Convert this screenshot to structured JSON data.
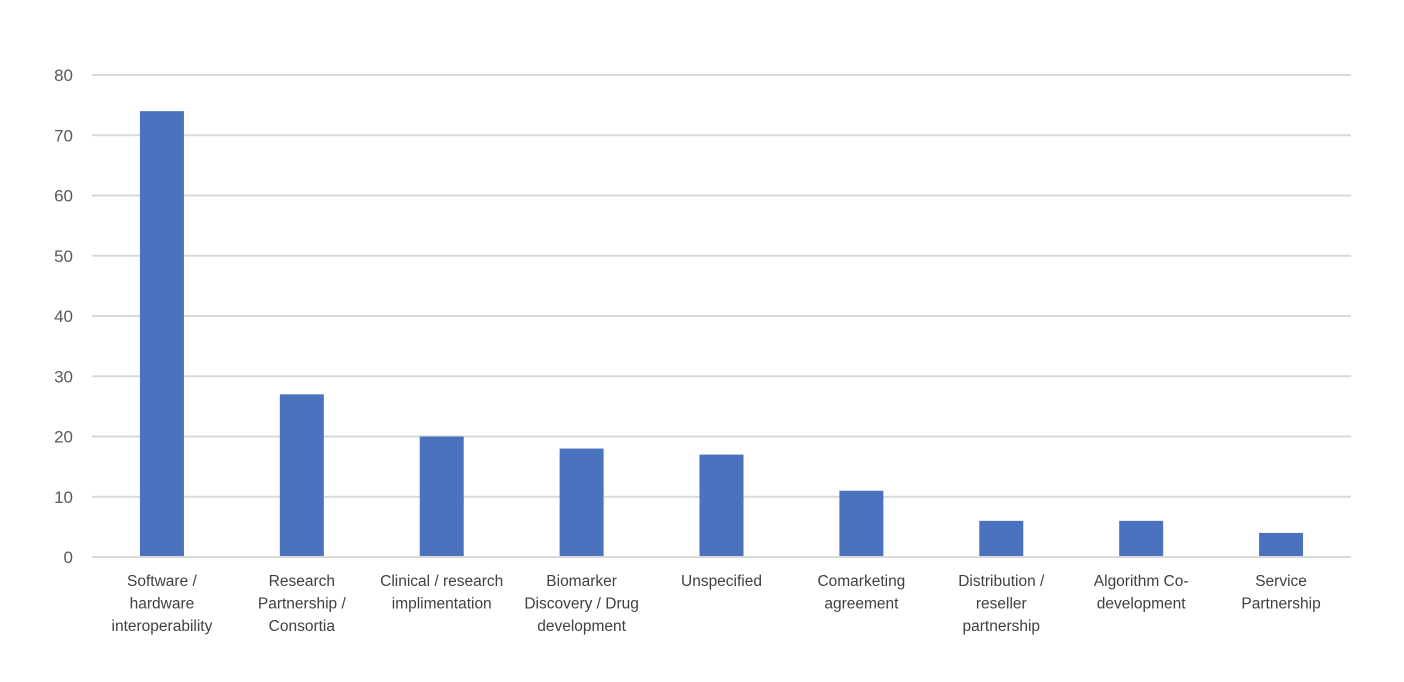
{
  "chart_data": {
    "type": "bar",
    "title": "",
    "xlabel": "",
    "ylabel": "",
    "categories": [
      "Software / hardware interoperability",
      "Research Partnership / Consortia",
      "Clinical / research implimentation",
      "Biomarker Discovery / Drug development",
      "Unspecified",
      "Comarketing agreement",
      "Distribution / reseller partnership",
      "Algorithm Co-development",
      "Service Partnership"
    ],
    "category_label_lines": [
      [
        "Software /",
        "hardware",
        "interoperability"
      ],
      [
        "Research",
        "Partnership /",
        "Consortia"
      ],
      [
        "Clinical / research",
        "implimentation"
      ],
      [
        "Biomarker",
        "Discovery / Drug",
        "development"
      ],
      [
        "Unspecified"
      ],
      [
        "Comarketing",
        "agreement"
      ],
      [
        "Distribution /",
        "reseller",
        "partnership"
      ],
      [
        "Algorithm Co-",
        "development"
      ],
      [
        "Service",
        "Partnership"
      ]
    ],
    "values": [
      74,
      27,
      20,
      18,
      17,
      11,
      6,
      6,
      4
    ],
    "ylim": [
      0,
      80
    ],
    "yticks": [
      "0",
      "10",
      "20",
      "30",
      "40",
      "50",
      "60",
      "70",
      "80"
    ],
    "grid": true,
    "legend": "none",
    "colors": {
      "bar": "#4a72be",
      "grid": "#d9d9d9",
      "axis": "#d9d9d9",
      "tick_text": "#595959",
      "category_text": "#404040"
    }
  }
}
